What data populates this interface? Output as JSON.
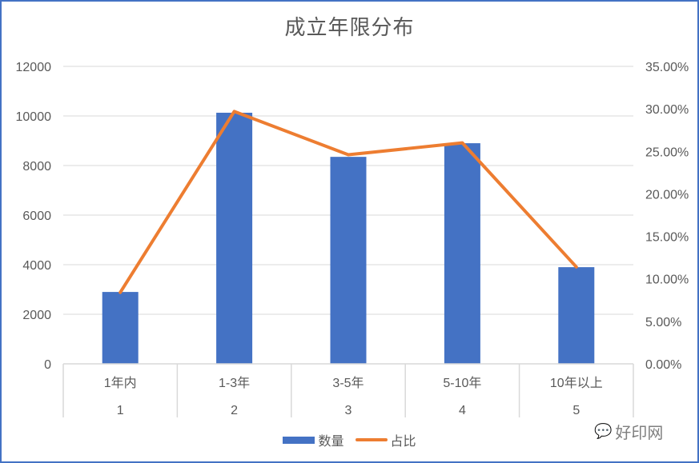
{
  "chart_data": {
    "type": "bar+line",
    "title": "成立年限分布",
    "categories": [
      "1年内",
      "1-3年",
      "3-5年",
      "5-10年",
      "10年以上"
    ],
    "category_index": [
      "1",
      "2",
      "3",
      "4",
      "5"
    ],
    "series": [
      {
        "name": "数量",
        "type": "bar",
        "axis": "left",
        "color": "#4472c4",
        "values": [
          2900,
          10130,
          8350,
          8900,
          3900
        ]
      },
      {
        "name": "占比",
        "type": "line",
        "axis": "right",
        "color": "#ed7d31",
        "values": [
          0.084,
          0.297,
          0.246,
          0.26,
          0.114
        ]
      }
    ],
    "y_left": {
      "min": 0,
      "max": 12000,
      "ticks": [
        "0",
        "2000",
        "4000",
        "6000",
        "8000",
        "10000",
        "12000"
      ]
    },
    "y_right": {
      "min": 0,
      "max": 0.35,
      "ticks": [
        "0.00%",
        "5.00%",
        "10.00%",
        "15.00%",
        "20.00%",
        "25.00%",
        "30.00%",
        "35.00%"
      ]
    },
    "grid": true,
    "legend_position": "bottom"
  },
  "legend": {
    "bar_label": "数量",
    "line_label": "占比"
  },
  "watermark": {
    "icon": "wechat-icon",
    "text": "好印网"
  }
}
